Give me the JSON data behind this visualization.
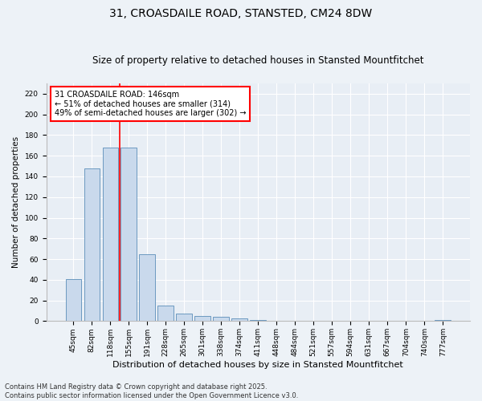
{
  "title": "31, CROASDAILE ROAD, STANSTED, CM24 8DW",
  "subtitle": "Size of property relative to detached houses in Stansted Mountfitchet",
  "xlabel": "Distribution of detached houses by size in Stansted Mountfitchet",
  "ylabel": "Number of detached properties",
  "categories": [
    "45sqm",
    "82sqm",
    "118sqm",
    "155sqm",
    "191sqm",
    "228sqm",
    "265sqm",
    "301sqm",
    "338sqm",
    "374sqm",
    "411sqm",
    "448sqm",
    "484sqm",
    "521sqm",
    "557sqm",
    "594sqm",
    "631sqm",
    "667sqm",
    "704sqm",
    "740sqm",
    "777sqm"
  ],
  "values": [
    41,
    148,
    168,
    168,
    65,
    15,
    7,
    5,
    4,
    3,
    1,
    0,
    0,
    0,
    0,
    0,
    0,
    0,
    0,
    0,
    1
  ],
  "bar_color": "#c9d9ec",
  "bar_edge_color": "#5b8db8",
  "property_line_color": "red",
  "annotation_text": "31 CROASDAILE ROAD: 146sqm\n← 51% of detached houses are smaller (314)\n49% of semi-detached houses are larger (302) →",
  "annotation_box_color": "white",
  "annotation_box_edge_color": "red",
  "footer_text": "Contains HM Land Registry data © Crown copyright and database right 2025.\nContains public sector information licensed under the Open Government Licence v3.0.",
  "ylim": [
    0,
    230
  ],
  "yticks": [
    0,
    20,
    40,
    60,
    80,
    100,
    120,
    140,
    160,
    180,
    200,
    220
  ],
  "bg_color": "#edf2f7",
  "plot_bg_color": "#e8eef5",
  "title_fontsize": 10,
  "subtitle_fontsize": 8.5,
  "xlabel_fontsize": 8,
  "ylabel_fontsize": 7.5,
  "tick_fontsize": 6.5,
  "annotation_fontsize": 7,
  "footer_fontsize": 6
}
